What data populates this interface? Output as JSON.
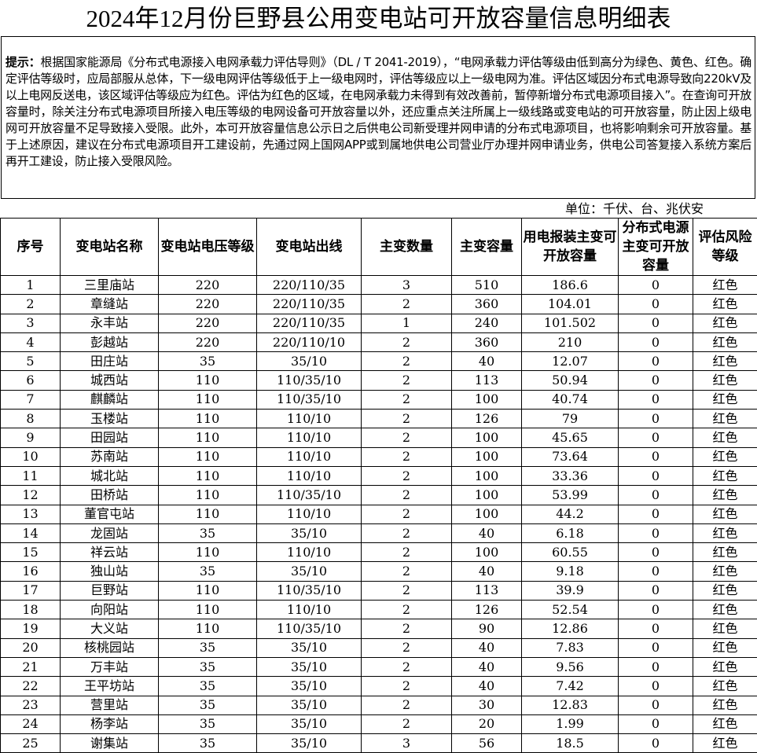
{
  "title": "2024年12月份巨野县公用变电站可开放容量信息明细表",
  "notice": {
    "label": "提示：",
    "text": "根据国家能源局《分布式电源接入电网承载力评估导则》（DL / T 2041-2019），“电网承载力评估等级由低到高分为绿色、黄色、红色。确定评估等级时，应局部服从总体，下一级电网评估等级低于上一级电网时，评估等级应以上一级电网为准。评估区域因分布式电源导致向220kV及以上电网反送电，该区域评估等级应为红色。评估为红色的区域，在电网承载力未得到有效改善前，暂停新增分布式电源项目接入”。在查询可开放容量时，除关注分布式电源项目所接入电压等级的电网设备可开放容量以外，还应重点关注所属上一级线路或变电站的可开放容量，防止因上级电网可开放容量不足导致接入受限。此外，本可开放容量信息公示日之后供电公司新受理并网申请的分布式电源项目，也将影响剩余可开放容量。基于上述原因，建议在分布式电源项目开工建设前，先通过网上国网APP或到属地供电公司营业厅办理并网申请业务，供电公司答复接入系统方案后再开工建设，防止接入受限风险。"
  },
  "unit": "单位：千伏、台、兆伏安",
  "table": {
    "headers": [
      "序号",
      "变电站名称",
      "变电站电压等级",
      "变电站出线",
      "主变数量",
      "主变容量",
      "用电报装主变可开放容量",
      "分布式电源主变可开放容量",
      "评估风险等级"
    ],
    "rows": [
      [
        "1",
        "三里庙站",
        "220",
        "220/110/35",
        "3",
        "510",
        "186.6",
        "0",
        "红色"
      ],
      [
        "2",
        "章缝站",
        "220",
        "220/110/35",
        "2",
        "360",
        "104.01",
        "0",
        "红色"
      ],
      [
        "3",
        "永丰站",
        "220",
        "220/110/35",
        "1",
        "240",
        "101.502",
        "0",
        "红色"
      ],
      [
        "4",
        "彭越站",
        "220",
        "220/110/10",
        "2",
        "360",
        "210",
        "0",
        "红色"
      ],
      [
        "5",
        "田庄站",
        "35",
        "35/10",
        "2",
        "40",
        "12.07",
        "0",
        "红色"
      ],
      [
        "6",
        "城西站",
        "110",
        "110/35/10",
        "2",
        "113",
        "50.94",
        "0",
        "红色"
      ],
      [
        "7",
        "麒麟站",
        "110",
        "110/35/10",
        "2",
        "100",
        "40.74",
        "0",
        "红色"
      ],
      [
        "8",
        "玉楼站",
        "110",
        "110/10",
        "2",
        "126",
        "79",
        "0",
        "红色"
      ],
      [
        "9",
        "田园站",
        "110",
        "110/10",
        "2",
        "100",
        "45.65",
        "0",
        "红色"
      ],
      [
        "10",
        "苏南站",
        "110",
        "110/10",
        "2",
        "100",
        "73.64",
        "0",
        "红色"
      ],
      [
        "11",
        "城北站",
        "110",
        "110/10",
        "2",
        "100",
        "33.36",
        "0",
        "红色"
      ],
      [
        "12",
        "田桥站",
        "110",
        "110/35/10",
        "2",
        "100",
        "53.99",
        "0",
        "红色"
      ],
      [
        "13",
        "董官屯站",
        "110",
        "110/10",
        "2",
        "100",
        "44.2",
        "0",
        "红色"
      ],
      [
        "14",
        "龙固站",
        "35",
        "35/10",
        "2",
        "40",
        "6.18",
        "0",
        "红色"
      ],
      [
        "15",
        "祥云站",
        "110",
        "110/10",
        "2",
        "100",
        "60.55",
        "0",
        "红色"
      ],
      [
        "16",
        "独山站",
        "35",
        "35/10",
        "2",
        "40",
        "9.18",
        "0",
        "红色"
      ],
      [
        "17",
        "巨野站",
        "110",
        "110/35/10",
        "2",
        "113",
        "39.9",
        "0",
        "红色"
      ],
      [
        "18",
        "向阳站",
        "110",
        "110/10",
        "2",
        "126",
        "52.54",
        "0",
        "红色"
      ],
      [
        "19",
        "大义站",
        "110",
        "110/35/10",
        "2",
        "90",
        "12.86",
        "0",
        "红色"
      ],
      [
        "20",
        "核桃园站",
        "35",
        "35/10",
        "2",
        "40",
        "7.83",
        "0",
        "红色"
      ],
      [
        "21",
        "万丰站",
        "35",
        "35/10",
        "2",
        "40",
        "9.56",
        "0",
        "红色"
      ],
      [
        "22",
        "王平坊站",
        "35",
        "35/10",
        "2",
        "40",
        "7.42",
        "0",
        "红色"
      ],
      [
        "23",
        "营里站",
        "35",
        "35/10",
        "2",
        "30",
        "12.83",
        "0",
        "红色"
      ],
      [
        "24",
        "杨李站",
        "35",
        "35/10",
        "2",
        "20",
        "1.99",
        "0",
        "红色"
      ],
      [
        "25",
        "谢集站",
        "35",
        "35/10",
        "3",
        "56",
        "18.5",
        "0",
        "红色"
      ]
    ]
  }
}
